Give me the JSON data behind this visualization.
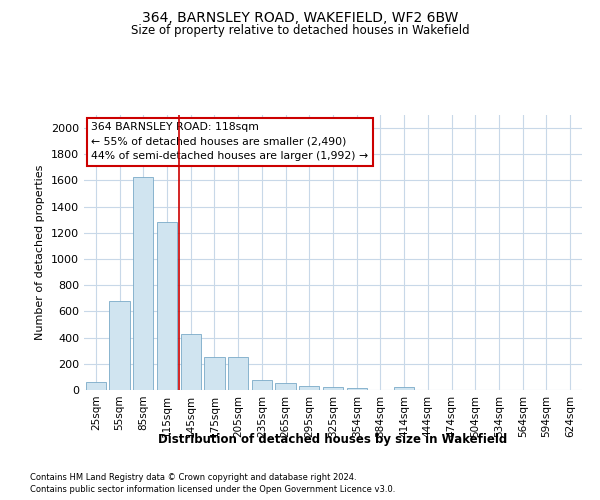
{
  "title_line1": "364, BARNSLEY ROAD, WAKEFIELD, WF2 6BW",
  "title_line2": "Size of property relative to detached houses in Wakefield",
  "xlabel": "Distribution of detached houses by size in Wakefield",
  "ylabel": "Number of detached properties",
  "categories": [
    "25sqm",
    "55sqm",
    "85sqm",
    "115sqm",
    "145sqm",
    "175sqm",
    "205sqm",
    "235sqm",
    "265sqm",
    "295sqm",
    "325sqm",
    "354sqm",
    "384sqm",
    "414sqm",
    "444sqm",
    "474sqm",
    "504sqm",
    "534sqm",
    "564sqm",
    "594sqm",
    "624sqm"
  ],
  "values": [
    60,
    680,
    1630,
    1280,
    430,
    250,
    250,
    80,
    50,
    30,
    25,
    15,
    0,
    20,
    0,
    0,
    0,
    0,
    0,
    0,
    0
  ],
  "bar_color": "#d0e4f0",
  "bar_edge_color": "#7aaac8",
  "vline_color": "#cc0000",
  "annotation_text": "364 BARNSLEY ROAD: 118sqm\n← 55% of detached houses are smaller (2,490)\n44% of semi-detached houses are larger (1,992) →",
  "annotation_box_color": "#ffffff",
  "annotation_box_edge": "#cc0000",
  "grid_color": "#c8d8e8",
  "background_color": "#ffffff",
  "footer_line1": "Contains HM Land Registry data © Crown copyright and database right 2024.",
  "footer_line2": "Contains public sector information licensed under the Open Government Licence v3.0.",
  "ylim": [
    0,
    2100
  ],
  "yticks": [
    0,
    200,
    400,
    600,
    800,
    1000,
    1200,
    1400,
    1600,
    1800,
    2000
  ]
}
